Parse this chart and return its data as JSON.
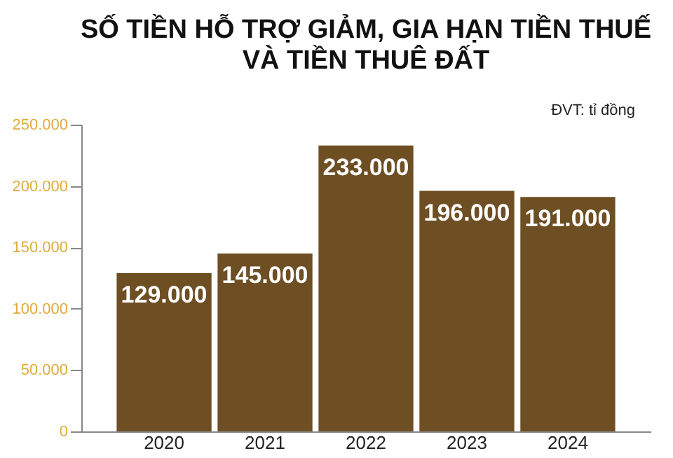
{
  "chart_data": {
    "type": "bar",
    "title": [
      "SỐ TIỀN  HỖ TRỢ GIẢM, GIA HẠN TIỀN THUẾ",
      "VÀ TIỀN THUÊ ĐẤT"
    ],
    "annotations": [
      "ĐVT: tỉ đồng"
    ],
    "categories": [
      "2020",
      "2021",
      "2022",
      "2023",
      "2024"
    ],
    "values": [
      129000,
      145000,
      233000,
      196000,
      191000
    ],
    "value_labels": [
      "129.000",
      "145.000",
      "233.000",
      "196.000",
      "191.000"
    ],
    "color": "#6e4f24",
    "ylim": [
      0,
      250000
    ],
    "yticks": [
      {
        "value": 0,
        "label": "0"
      },
      {
        "value": 50000,
        "label": "50.000"
      },
      {
        "value": 100000,
        "label": "100.000"
      },
      {
        "value": 150000,
        "label": "150.000"
      },
      {
        "value": 200000,
        "label": "200.000"
      },
      {
        "value": 250000,
        "label": "250.000"
      }
    ],
    "grid": false
  }
}
